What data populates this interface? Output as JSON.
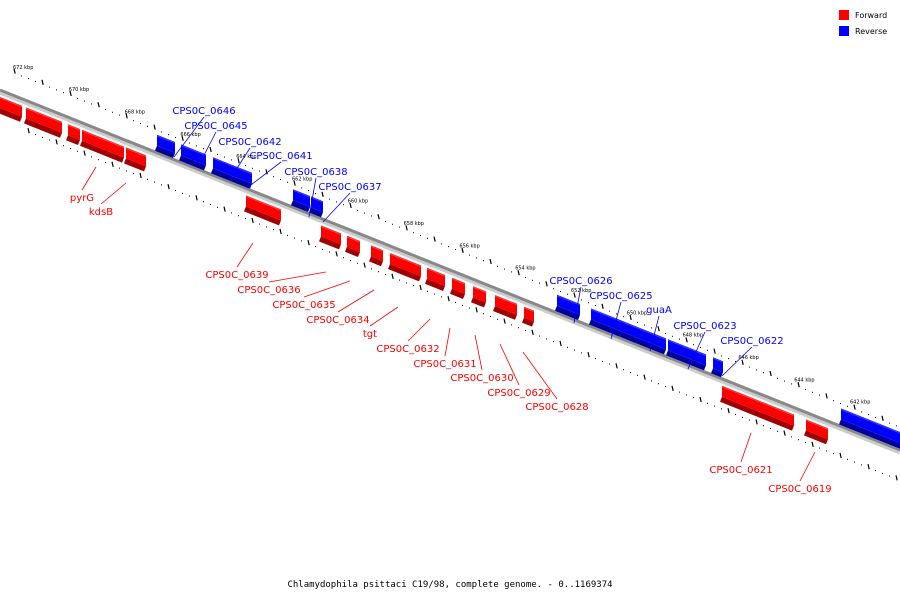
{
  "colors": {
    "forward": "#ff0000",
    "reverse": "#0000ff",
    "forward_dark": "#a00000",
    "reverse_dark": "#0000a0",
    "backbone": "#888888"
  },
  "legend": [
    {
      "label": "Forward",
      "color": "#ff0000"
    },
    {
      "label": "Reverse",
      "color": "#0000ff"
    }
  ],
  "caption": "Chlamydophila psittaci C19/98, complete genome. - 0..1169374",
  "scale_labels": [
    "672 kbp",
    "670 kbp",
    "668 kbp",
    "666 kbp",
    "664 kbp",
    "662 kbp",
    "660 kbp",
    "658 kbp",
    "656 kbp",
    "654 kbp",
    "652 kbp",
    "650 kbp",
    "648 kbp",
    "646 kbp",
    "644 kbp",
    "642 kbp"
  ],
  "scale_kbp": [
    672,
    670,
    668,
    666,
    664,
    662,
    660,
    658,
    656,
    654,
    652,
    650,
    648,
    646,
    644,
    642
  ],
  "forward_labels": [
    "pyrG",
    "kdsB",
    "CPS0C_0639",
    "CPS0C_0636",
    "CPS0C_0635",
    "CPS0C_0634",
    "tgt",
    "CPS0C_0632",
    "CPS0C_0631",
    "CPS0C_0630",
    "CPS0C_0629",
    "CPS0C_0628",
    "CPS0C_0621",
    "CPS0C_0619"
  ],
  "reverse_labels": [
    "CPS0C_0646",
    "CPS0C_0645",
    "CPS0C_0642",
    "CPS0C_0641",
    "CPS0C_0638",
    "CPS0C_0637",
    "CPS0C_0626",
    "CPS0C_0625",
    "guaA",
    "CPS0C_0623",
    "CPS0C_0622"
  ]
}
